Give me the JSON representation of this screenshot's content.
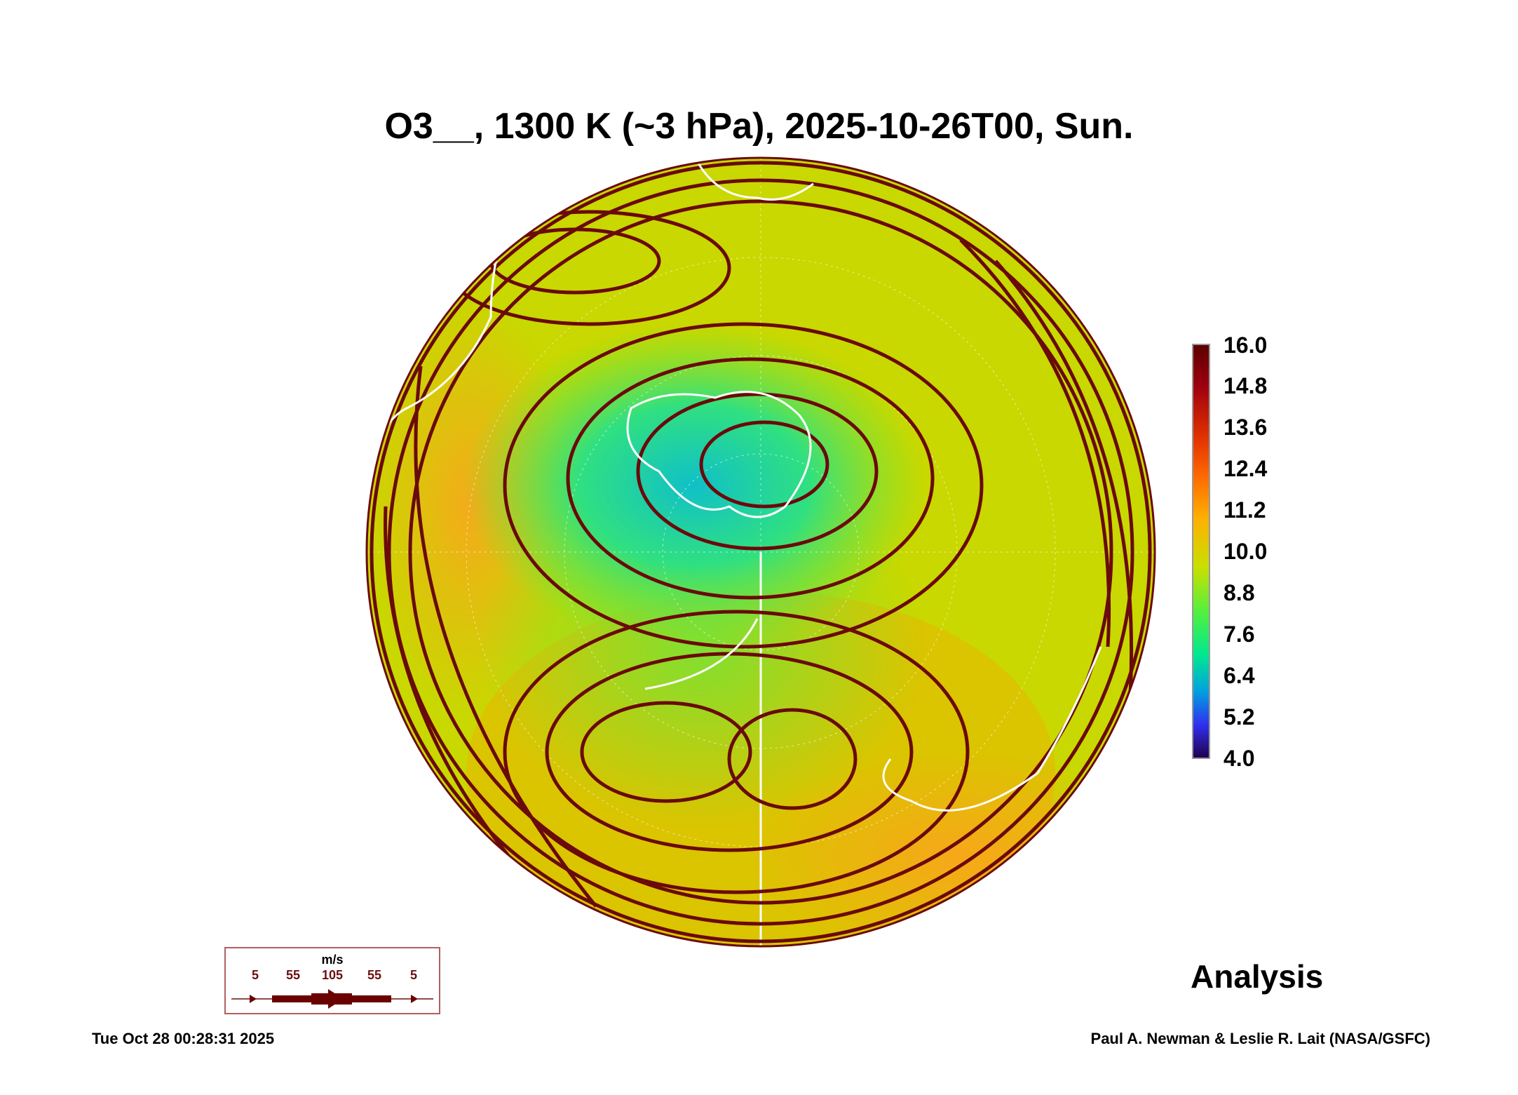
{
  "title": "O3__, 1300 K (~3 hPa), 2025-10-26T00, Sun.",
  "colorbar": {
    "labels": [
      "16.0",
      "14.8",
      "13.6",
      "12.4",
      "11.2",
      "10.0",
      "8.8",
      "7.6",
      "6.4",
      "5.2",
      "4.0"
    ],
    "range": [
      4.0,
      16.0
    ]
  },
  "legend": {
    "unit": "m/s",
    "speeds": [
      "5",
      "55",
      "105",
      "55",
      "5"
    ]
  },
  "analysis_label": "Analysis",
  "footer": {
    "timestamp": "Tue Oct 28 00:28:31 2025",
    "credit": "Paul A. Newman & Leslie R. Lait (NASA/GSFC)"
  },
  "colors": {
    "streamline": "#6a0a0a",
    "coast": "#ffffff"
  }
}
